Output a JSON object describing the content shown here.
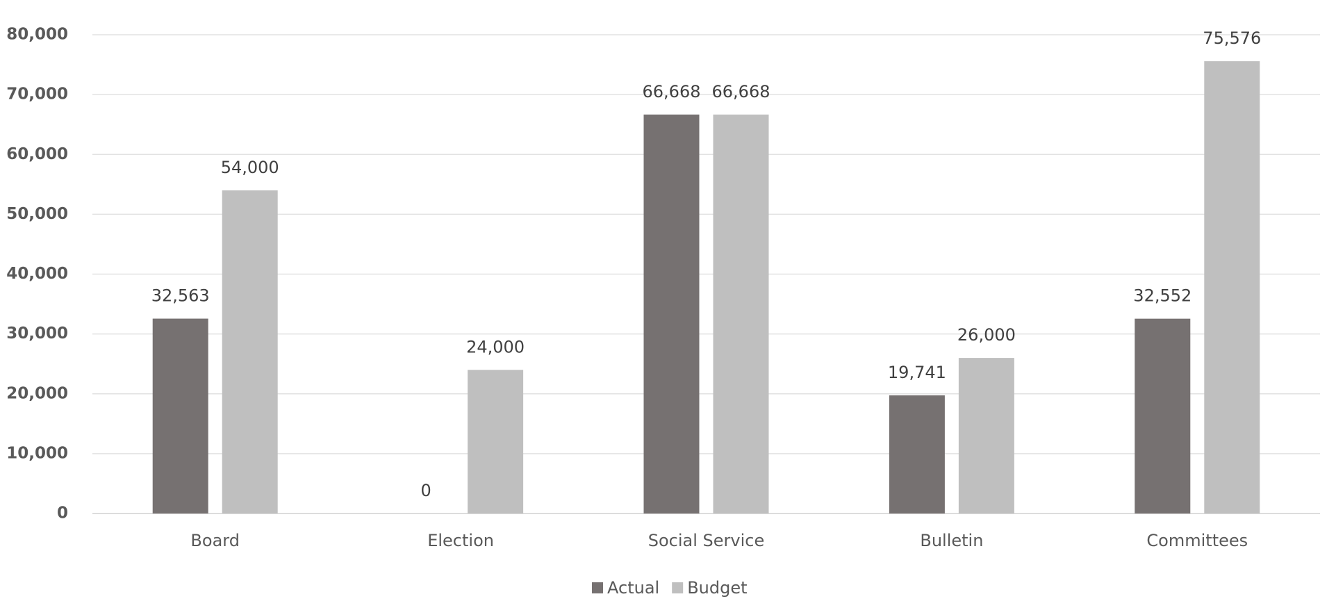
{
  "chart_data": {
    "type": "bar",
    "categories": [
      "Board",
      "Election",
      "Social Service",
      "Bulletin",
      "Committees"
    ],
    "series": [
      {
        "name": "Actual",
        "color": "#767171",
        "values": [
          32563,
          0,
          66668,
          19741,
          32552
        ],
        "value_labels": [
          "32,563",
          "0",
          "66,668",
          "19,741",
          "32,552"
        ]
      },
      {
        "name": "Budget",
        "color": "#bfbfbf",
        "values": [
          54000,
          24000,
          66668,
          26000,
          75576
        ],
        "value_labels": [
          "54,000",
          "24,000",
          "66,668",
          "26,000",
          "75,576"
        ]
      }
    ],
    "ylim": [
      0,
      80000
    ],
    "yticks": [
      0,
      {
        "value": 10000,
        "label": "10,000"
      },
      {
        "value": 20000,
        "label": "20,000"
      },
      {
        "value": 30000,
        "label": "30,000"
      },
      {
        "value": 40000,
        "label": "40,000"
      },
      {
        "value": 50000,
        "label": "50,000"
      },
      {
        "value": 60000,
        "label": "60,000"
      },
      {
        "value": 70000,
        "label": "70,000"
      },
      {
        "value": 80000,
        "label": "80,000"
      }
    ],
    "grid": true,
    "legend": "bottom"
  }
}
